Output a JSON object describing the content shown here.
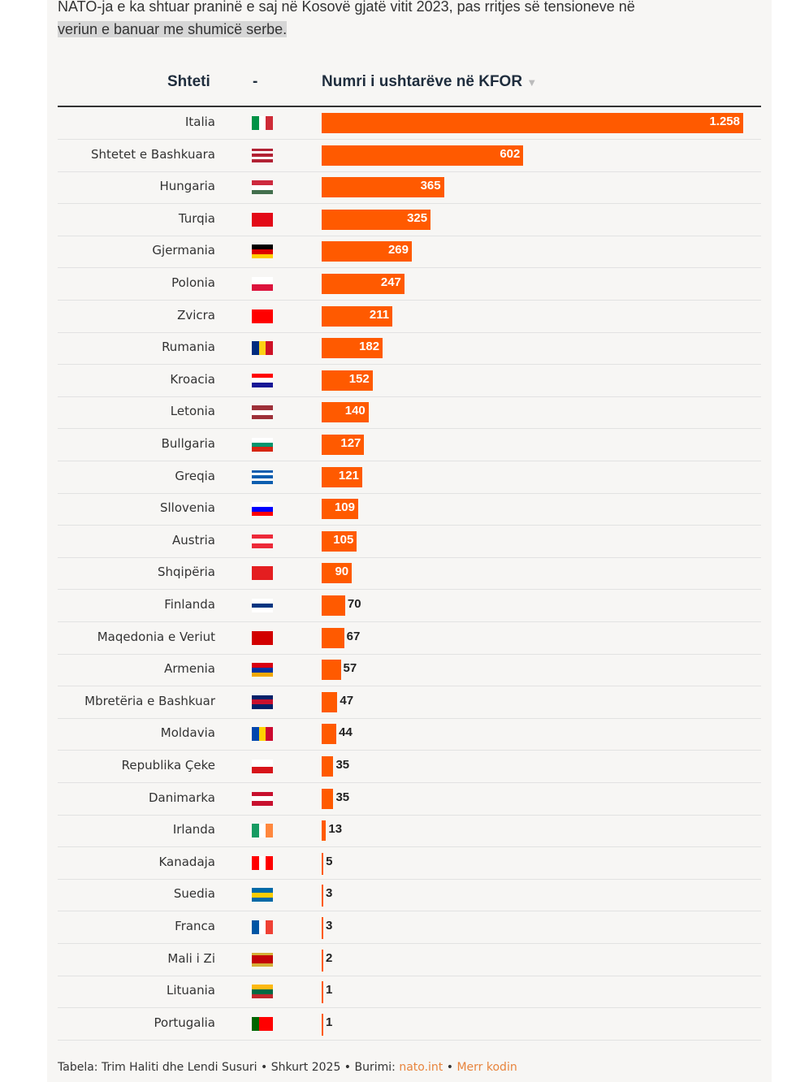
{
  "intro": {
    "line1": "NATO-ja e ka shtuar praninë e saj në Kosovë gjatë vitit 2023, pas rritjes së tensioneve në",
    "line2": "veriun e banuar me shumicë serbe."
  },
  "chart_data": {
    "type": "table",
    "columns": [
      "Shteti",
      "-",
      "Numri i ushtarëve në KFOR"
    ],
    "sort_indicator": "▼",
    "bar_color": "#ff5a00",
    "rows": [
      {
        "country": "Italia",
        "value": 1258,
        "label": "1.258",
        "flag": [
          "v",
          "#009246",
          "#ffffff",
          "#ce2b37"
        ]
      },
      {
        "country": "Shtetet e Bashkuara",
        "value": 602,
        "label": "602",
        "flag": [
          "h",
          "#b22234",
          "#ffffff",
          "#b22234",
          "#ffffff",
          "#b22234"
        ]
      },
      {
        "country": "Hungaria",
        "value": 365,
        "label": "365",
        "flag": [
          "h",
          "#cd2a3e",
          "#ffffff",
          "#436f4d"
        ]
      },
      {
        "country": "Turqia",
        "value": 325,
        "label": "325",
        "flag": [
          "h",
          "#e30a17"
        ]
      },
      {
        "country": "Gjermania",
        "value": 269,
        "label": "269",
        "flag": [
          "h",
          "#000000",
          "#dd0000",
          "#ffce00"
        ]
      },
      {
        "country": "Polonia",
        "value": 247,
        "label": "247",
        "flag": [
          "h",
          "#ffffff",
          "#dc143c"
        ]
      },
      {
        "country": "Zvicra",
        "value": 211,
        "label": "211",
        "flag": [
          "h",
          "#ff0000"
        ]
      },
      {
        "country": "Rumania",
        "value": 182,
        "label": "182",
        "flag": [
          "v",
          "#002b7f",
          "#fcd116",
          "#ce1126"
        ]
      },
      {
        "country": "Kroacia",
        "value": 152,
        "label": "152",
        "flag": [
          "h",
          "#ff0000",
          "#ffffff",
          "#171796"
        ]
      },
      {
        "country": "Letonia",
        "value": 140,
        "label": "140",
        "flag": [
          "h",
          "#9e3039",
          "#ffffff",
          "#9e3039"
        ]
      },
      {
        "country": "Bullgaria",
        "value": 127,
        "label": "127",
        "flag": [
          "h",
          "#ffffff",
          "#00966e",
          "#d62612"
        ]
      },
      {
        "country": "Greqia",
        "value": 121,
        "label": "121",
        "flag": [
          "h",
          "#0d5eaf",
          "#ffffff",
          "#0d5eaf",
          "#ffffff",
          "#0d5eaf"
        ]
      },
      {
        "country": "Sllovenia",
        "value": 109,
        "label": "109",
        "flag": [
          "h",
          "#ffffff",
          "#0000ff",
          "#ff0000"
        ]
      },
      {
        "country": "Austria",
        "value": 105,
        "label": "105",
        "flag": [
          "h",
          "#ed2939",
          "#ffffff",
          "#ed2939"
        ]
      },
      {
        "country": "Shqipëria",
        "value": 90,
        "label": "90",
        "flag": [
          "h",
          "#e41e20"
        ]
      },
      {
        "country": "Finlanda",
        "value": 70,
        "label": "70",
        "flag": [
          "h",
          "#ffffff",
          "#003580",
          "#ffffff"
        ]
      },
      {
        "country": "Maqedonia e Veriut",
        "value": 67,
        "label": "67",
        "flag": [
          "h",
          "#d20000"
        ]
      },
      {
        "country": "Armenia",
        "value": 57,
        "label": "57",
        "flag": [
          "h",
          "#d90012",
          "#0033a0",
          "#f2a800"
        ]
      },
      {
        "country": "Mbretëria e Bashkuar",
        "value": 47,
        "label": "47",
        "flag": [
          "h",
          "#012169",
          "#c8102e",
          "#012169"
        ]
      },
      {
        "country": "Moldavia",
        "value": 44,
        "label": "44",
        "flag": [
          "v",
          "#0046ae",
          "#ffd200",
          "#cc092f"
        ]
      },
      {
        "country": "Republika Çeke",
        "value": 35,
        "label": "35",
        "flag": [
          "h",
          "#ffffff",
          "#d7141a"
        ]
      },
      {
        "country": "Danimarka",
        "value": 35,
        "label": "35",
        "flag": [
          "h",
          "#c8102e",
          "#ffffff",
          "#c8102e"
        ]
      },
      {
        "country": "Irlanda",
        "value": 13,
        "label": "13",
        "flag": [
          "v",
          "#169b62",
          "#ffffff",
          "#ff883e"
        ]
      },
      {
        "country": "Kanadaja",
        "value": 5,
        "label": "5",
        "flag": [
          "v",
          "#ff0000",
          "#ffffff",
          "#ff0000"
        ]
      },
      {
        "country": "Suedia",
        "value": 3,
        "label": "3",
        "flag": [
          "h",
          "#006aa7",
          "#fecc00",
          "#006aa7"
        ]
      },
      {
        "country": "Franca",
        "value": 3,
        "label": "3",
        "flag": [
          "v",
          "#0055a4",
          "#ffffff",
          "#ef4135"
        ]
      },
      {
        "country": "Mali i Zi",
        "value": 2,
        "label": "2",
        "flag": [
          "h",
          "#d4af37",
          "#c40308",
          "#c40308",
          "#c40308",
          "#d4af37"
        ]
      },
      {
        "country": "Lituania",
        "value": 1,
        "label": "1",
        "flag": [
          "h",
          "#fdb913",
          "#006a44",
          "#c1272d"
        ]
      },
      {
        "country": "Portugalia",
        "value": 1,
        "label": "1",
        "flag": [
          "v",
          "#006600",
          "#ff0000",
          "#ff0000"
        ]
      }
    ],
    "xlim": [
      0,
      1258
    ]
  },
  "footer": {
    "prefix": "Tabela: Trim Haliti dhe Lendi Susuri • Shkurt 2025 • Burimi: ",
    "source": "nato.int",
    "sep": " • ",
    "code_link": "Merr kodin"
  }
}
